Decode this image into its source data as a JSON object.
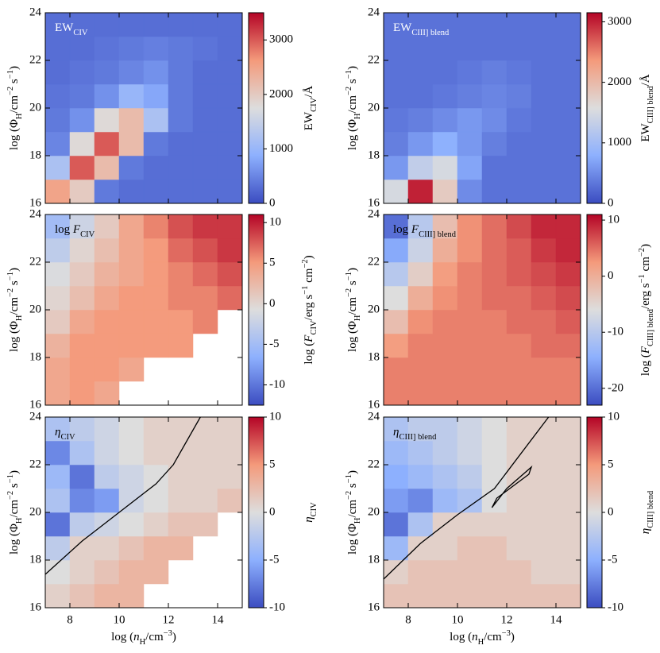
{
  "chart_data": [
    {
      "type": "heatmap",
      "label": [
        {
          "t": "EW"
        },
        {
          "t": "CIV",
          "sub": true
        }
      ],
      "label_color": "#ffffff",
      "ylabel": [
        {
          "t": "log (Φ"
        },
        {
          "t": "H",
          "sub": true
        },
        {
          "t": "/cm"
        },
        {
          "t": "−2",
          "sup": true
        },
        {
          "t": " s"
        },
        {
          "t": "−1",
          "sup": true
        },
        {
          "t": ")"
        }
      ],
      "zlabel": [
        {
          "t": "EW"
        },
        {
          "t": "CIV",
          "sub": true
        },
        {
          "t": "/Å"
        }
      ],
      "xlim": [
        7,
        15
      ],
      "xticks": [
        8,
        10,
        12,
        14
      ],
      "show_xticklabels": false,
      "ylim": [
        16,
        24
      ],
      "yticks": [
        16,
        18,
        20,
        22,
        24
      ],
      "zlim": [
        0,
        3500
      ],
      "zticks": [
        0,
        1000,
        2000,
        3000
      ],
      "colormap": [
        "#3b4cc0",
        "#8db0fe",
        "#dddddd",
        "#f49a7b",
        "#b40426"
      ],
      "xbins": [
        7,
        8,
        9,
        10,
        11,
        12,
        13,
        14,
        15
      ],
      "ybins": [
        16,
        17,
        18,
        19,
        20,
        21,
        22,
        23,
        24
      ],
      "z": [
        [
          2500,
          2000,
          400,
          300,
          300,
          300,
          300,
          300
        ],
        [
          1200,
          3000,
          2200,
          400,
          300,
          300,
          300,
          300
        ],
        [
          500,
          1800,
          3000,
          2200,
          400,
          300,
          300,
          300
        ],
        [
          400,
          600,
          1800,
          2200,
          1200,
          400,
          300,
          300
        ],
        [
          350,
          400,
          600,
          1000,
          800,
          400,
          300,
          300
        ],
        [
          300,
          350,
          400,
          500,
          600,
          400,
          300,
          300
        ],
        [
          300,
          300,
          350,
          400,
          450,
          400,
          350,
          300
        ],
        [
          300,
          300,
          300,
          300,
          300,
          300,
          300,
          300
        ]
      ]
    },
    {
      "type": "heatmap",
      "label": [
        {
          "t": "EW"
        },
        {
          "t": "CIII] blend",
          "sub": true
        }
      ],
      "label_color": "#ffffff",
      "ylabel": [
        {
          "t": "log (Φ"
        },
        {
          "t": "H",
          "sub": true
        },
        {
          "t": "/cm"
        },
        {
          "t": "−2",
          "sup": true
        },
        {
          "t": " s"
        },
        {
          "t": "−1",
          "sup": true
        },
        {
          "t": ")"
        }
      ],
      "zlabel": [
        {
          "t": "EW"
        },
        {
          "t": "CIII] blend",
          "sub": true
        },
        {
          "t": "/Å"
        }
      ],
      "xlim": [
        7,
        15
      ],
      "xticks": [
        8,
        10,
        12,
        14
      ],
      "show_xticklabels": false,
      "ylim": [
        16,
        24
      ],
      "yticks": [
        16,
        18,
        20,
        22,
        24
      ],
      "zlim": [
        0,
        3150
      ],
      "zticks": [
        0,
        1000,
        2000,
        3000
      ],
      "colormap": [
        "#3b4cc0",
        "#8db0fe",
        "#dddddd",
        "#f49a7b",
        "#b40426"
      ],
      "xbins": [
        7,
        8,
        9,
        10,
        11,
        12,
        13,
        14,
        15
      ],
      "ybins": [
        16,
        17,
        18,
        19,
        20,
        21,
        22,
        23,
        24
      ],
      "z": [
        [
          1500,
          3000,
          1800,
          500,
          300,
          300,
          300,
          300
        ],
        [
          600,
          1300,
          1500,
          700,
          300,
          300,
          300,
          300
        ],
        [
          400,
          600,
          800,
          600,
          400,
          300,
          300,
          300
        ],
        [
          350,
          400,
          500,
          600,
          500,
          350,
          300,
          300
        ],
        [
          300,
          300,
          350,
          400,
          450,
          400,
          300,
          300
        ],
        [
          300,
          300,
          300,
          350,
          400,
          350,
          300,
          300
        ],
        [
          300,
          300,
          300,
          300,
          300,
          300,
          300,
          300
        ],
        [
          300,
          300,
          300,
          300,
          300,
          300,
          300,
          300
        ]
      ]
    },
    {
      "type": "heatmap",
      "label": [
        {
          "t": "log "
        },
        {
          "t": "F",
          "it": true
        },
        {
          "t": "CIV",
          "sub": true
        }
      ],
      "label_color": "#000000",
      "ylabel": [
        {
          "t": "log (Φ"
        },
        {
          "t": "H",
          "sub": true
        },
        {
          "t": "/cm"
        },
        {
          "t": "−2",
          "sup": true
        },
        {
          "t": " s"
        },
        {
          "t": "−1",
          "sup": true
        },
        {
          "t": ")"
        }
      ],
      "zlabel": [
        {
          "t": "log ("
        },
        {
          "t": "F",
          "it": true
        },
        {
          "t": "CIV",
          "sub": true
        },
        {
          "t": "/erg s"
        },
        {
          "t": "−1",
          "sup": true
        },
        {
          "t": " cm"
        },
        {
          "t": "−2",
          "sup": true
        },
        {
          "t": ")"
        }
      ],
      "xlim": [
        7,
        15
      ],
      "xticks": [
        8,
        10,
        12,
        14
      ],
      "show_xticklabels": false,
      "ylim": [
        16,
        24
      ],
      "yticks": [
        16,
        18,
        20,
        22,
        24
      ],
      "zlim": [
        -12.5,
        11
      ],
      "zticks": [
        -10,
        -5,
        0,
        5,
        10
      ],
      "colormap": [
        "#3b4cc0",
        "#8db0fe",
        "#dddddd",
        "#f49a7b",
        "#b40426"
      ],
      "xbins": [
        7,
        8,
        9,
        10,
        11,
        12,
        13,
        14,
        15
      ],
      "ybins": [
        16,
        17,
        18,
        19,
        20,
        21,
        22,
        23,
        24
      ],
      "z": [
        [
          4,
          5,
          4,
          null,
          null,
          null,
          null,
          null
        ],
        [
          4,
          5,
          5,
          4,
          null,
          null,
          null,
          null
        ],
        [
          3,
          5,
          5,
          5,
          5,
          5,
          null,
          null
        ],
        [
          1,
          4,
          5,
          5,
          5,
          5,
          6,
          null
        ],
        [
          0,
          2,
          4,
          5,
          5,
          6,
          6,
          7
        ],
        [
          -1,
          1,
          3,
          4,
          5,
          6,
          7,
          8
        ],
        [
          -3,
          0,
          2,
          4,
          5,
          7,
          8,
          9
        ],
        [
          -5,
          -2,
          1,
          4,
          6,
          8,
          9,
          9
        ]
      ]
    },
    {
      "type": "heatmap",
      "label": [
        {
          "t": "log "
        },
        {
          "t": "F",
          "it": true
        },
        {
          "t": "CIII] blend",
          "sub": true
        }
      ],
      "label_color": "#000000",
      "ylabel": [
        {
          "t": "log (Φ"
        },
        {
          "t": "H",
          "sub": true
        },
        {
          "t": "/cm"
        },
        {
          "t": "−2",
          "sup": true
        },
        {
          "t": " s"
        },
        {
          "t": "−1",
          "sup": true
        },
        {
          "t": ")"
        }
      ],
      "zlabel": [
        {
          "t": "log ("
        },
        {
          "t": "F",
          "it": true
        },
        {
          "t": "CIII] blend",
          "sub": true
        },
        {
          "t": "/erg s"
        },
        {
          "t": "−1",
          "sup": true
        },
        {
          "t": " cm"
        },
        {
          "t": "−2",
          "sup": true
        },
        {
          "t": ")"
        }
      ],
      "xlim": [
        7,
        15
      ],
      "xticks": [
        8,
        10,
        12,
        14
      ],
      "show_xticklabels": false,
      "ylim": [
        16,
        24
      ],
      "yticks": [
        16,
        18,
        20,
        22,
        24
      ],
      "zlim": [
        -23,
        11
      ],
      "zticks": [
        -20,
        -10,
        0,
        10
      ],
      "colormap": [
        "#3b4cc0",
        "#8db0fe",
        "#dddddd",
        "#f49a7b",
        "#b40426"
      ],
      "xbins": [
        7,
        8,
        9,
        10,
        11,
        12,
        13,
        14,
        15
      ],
      "ybins": [
        16,
        17,
        18,
        19,
        20,
        21,
        22,
        23,
        24
      ],
      "z": [
        [
          4,
          4,
          4,
          4,
          4,
          4,
          4,
          4
        ],
        [
          4,
          4,
          4,
          4,
          4,
          4,
          4,
          4
        ],
        [
          2,
          4,
          4,
          4,
          4,
          4,
          5,
          5
        ],
        [
          -2,
          3,
          4,
          4,
          4,
          5,
          5,
          6
        ],
        [
          -6,
          0,
          3,
          4,
          5,
          5,
          6,
          7
        ],
        [
          -10,
          -4,
          2,
          4,
          5,
          6,
          7,
          8
        ],
        [
          -15,
          -8,
          0,
          3,
          5,
          6,
          8,
          9
        ],
        [
          -20,
          -10,
          -2,
          3,
          5,
          7,
          9,
          9
        ]
      ]
    },
    {
      "type": "heatmap",
      "label": [
        {
          "t": "η",
          "it": true
        },
        {
          "t": "CIV",
          "sub": true
        }
      ],
      "label_color": "#000000",
      "ylabel": [
        {
          "t": "log (Φ"
        },
        {
          "t": "H",
          "sub": true
        },
        {
          "t": "/cm"
        },
        {
          "t": "−2",
          "sup": true
        },
        {
          "t": " s"
        },
        {
          "t": "−1",
          "sup": true
        },
        {
          "t": ")"
        }
      ],
      "xlabel": [
        {
          "t": "log ("
        },
        {
          "t": "n",
          "it": true
        },
        {
          "t": "H",
          "sub": true
        },
        {
          "t": "/cm"
        },
        {
          "t": "−3",
          "sup": true
        },
        {
          "t": ")"
        }
      ],
      "zlabel": [
        {
          "t": "η",
          "it": true
        },
        {
          "t": "CIV",
          "sub": true
        }
      ],
      "xlim": [
        7,
        15
      ],
      "xticks": [
        8,
        10,
        12,
        14
      ],
      "show_xticklabels": true,
      "ylim": [
        16,
        24
      ],
      "yticks": [
        16,
        18,
        20,
        22,
        24
      ],
      "zlim": [
        -10,
        10
      ],
      "zticks": [
        -10,
        -5,
        0,
        5,
        10
      ],
      "colormap": [
        "#3b4cc0",
        "#8db0fe",
        "#dddddd",
        "#f49a7b",
        "#b40426"
      ],
      "xbins": [
        7,
        8,
        9,
        10,
        11,
        12,
        13,
        14,
        15
      ],
      "ybins": [
        16,
        17,
        18,
        19,
        20,
        21,
        22,
        23,
        24
      ],
      "z": [
        [
          1,
          2,
          3,
          3,
          null,
          null,
          null,
          null
        ],
        [
          0,
          1,
          2,
          3,
          3,
          null,
          null,
          null
        ],
        [
          -2,
          1,
          1,
          2,
          3,
          3,
          null,
          null
        ],
        [
          -8,
          -2,
          -1,
          0,
          1,
          2,
          2,
          null
        ],
        [
          -3,
          -7,
          -6,
          -1,
          0,
          1,
          1,
          2
        ],
        [
          -4,
          -8,
          -2,
          -1,
          0,
          1,
          1,
          1
        ],
        [
          -7,
          -3,
          -1,
          0,
          1,
          1,
          1,
          1
        ],
        [
          -3,
          -2,
          -1,
          0,
          1,
          1,
          1,
          1
        ]
      ],
      "contours": [
        {
          "x": [
            7,
            8.5,
            10,
            11.5,
            12.2,
            13.3
          ],
          "y": [
            17.4,
            18.8,
            20,
            21.2,
            22,
            24
          ]
        }
      ]
    },
    {
      "type": "heatmap",
      "label": [
        {
          "t": "η",
          "it": true
        },
        {
          "t": "CIII] blend",
          "sub": true
        }
      ],
      "label_color": "#000000",
      "ylabel": [
        {
          "t": "log (Φ"
        },
        {
          "t": "H",
          "sub": true
        },
        {
          "t": "/cm"
        },
        {
          "t": "−2",
          "sup": true
        },
        {
          "t": " s"
        },
        {
          "t": "−1",
          "sup": true
        },
        {
          "t": ")"
        }
      ],
      "xlabel": [
        {
          "t": "log ("
        },
        {
          "t": "n",
          "it": true
        },
        {
          "t": "H",
          "sub": true
        },
        {
          "t": "/cm"
        },
        {
          "t": "−3",
          "sup": true
        },
        {
          "t": ")"
        }
      ],
      "zlabel": [
        {
          "t": "η",
          "it": true
        },
        {
          "t": "CIII] blend",
          "sub": true
        }
      ],
      "xlim": [
        7,
        15
      ],
      "xticks": [
        8,
        10,
        12,
        14
      ],
      "show_xticklabels": true,
      "ylim": [
        16,
        24
      ],
      "yticks": [
        16,
        18,
        20,
        22,
        24
      ],
      "zlim": [
        -10,
        10
      ],
      "zticks": [
        -10,
        -5,
        0,
        5,
        10
      ],
      "colormap": [
        "#3b4cc0",
        "#8db0fe",
        "#dddddd",
        "#f49a7b",
        "#b40426"
      ],
      "xbins": [
        7,
        8,
        9,
        10,
        11,
        12,
        13,
        14,
        15
      ],
      "ybins": [
        16,
        17,
        18,
        19,
        20,
        21,
        22,
        23,
        24
      ],
      "z": [
        [
          2,
          2,
          2,
          2,
          2,
          2,
          2,
          2
        ],
        [
          1,
          2,
          2,
          2,
          2,
          2,
          1,
          1
        ],
        [
          -4,
          1,
          1,
          2,
          2,
          1,
          1,
          1
        ],
        [
          -8,
          -3,
          1,
          1,
          1,
          1,
          1,
          1
        ],
        [
          -6,
          -7,
          -4,
          -3,
          0,
          1,
          1,
          1
        ],
        [
          -5,
          -4,
          -3,
          -2,
          0,
          1,
          1,
          1
        ],
        [
          -4,
          -3,
          -2,
          -1,
          0,
          1,
          1,
          1
        ],
        [
          -3,
          -2,
          -2,
          -1,
          0,
          1,
          1,
          1
        ]
      ],
      "contours": [
        {
          "x": [
            7,
            8.5,
            10,
            11.5,
            13.7
          ],
          "y": [
            17.2,
            18.7,
            19.9,
            21,
            24
          ]
        },
        {
          "x": [
            11.4,
            12,
            13,
            12.9,
            11.6,
            11.4
          ],
          "y": [
            20.2,
            21,
            21.9,
            21.6,
            20.6,
            20.2
          ]
        }
      ]
    }
  ]
}
